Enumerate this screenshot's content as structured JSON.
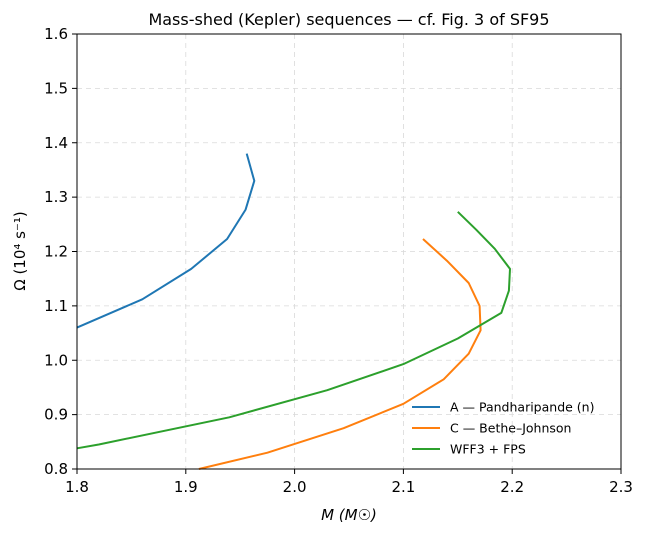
{
  "chart_data": {
    "type": "line",
    "title": "Mass-shed (Kepler) sequences — cf. Fig. 3 of SF95",
    "xlabel": "M (M☉)",
    "ylabel": "Ω (10⁴ s⁻¹)",
    "xlim": [
      1.8,
      2.3
    ],
    "ylim": [
      0.8,
      1.6
    ],
    "xticks": [
      "1.8",
      "1.9",
      "2.0",
      "2.1",
      "2.2",
      "2.3"
    ],
    "yticks": [
      "0.8",
      "0.9",
      "1.0",
      "1.1",
      "1.2",
      "1.3",
      "1.4",
      "1.5",
      "1.6"
    ],
    "grid": true,
    "legend_position": "lower-right",
    "series": [
      {
        "name": "A — Pandharipande (n)",
        "color": "#1f77b4",
        "x": [
          1.8,
          1.86,
          1.905,
          1.938,
          1.955,
          1.963,
          1.956
        ],
        "y": [
          1.06,
          1.112,
          1.168,
          1.223,
          1.277,
          1.33,
          1.38
        ]
      },
      {
        "name": "C — Bethe–Johnson",
        "color": "#ff7f0e",
        "x": [
          1.912,
          1.975,
          2.045,
          2.1,
          2.137,
          2.16,
          2.171,
          2.17,
          2.16,
          2.14,
          2.118
        ],
        "y": [
          0.8,
          0.83,
          0.875,
          0.92,
          0.965,
          1.012,
          1.055,
          1.1,
          1.142,
          1.183,
          1.223
        ]
      },
      {
        "name": "WFF3 + FPS",
        "color": "#2ca02c",
        "x": [
          1.8,
          1.82,
          1.94,
          2.03,
          2.1,
          2.15,
          2.19,
          2.197,
          2.198,
          2.184,
          2.167,
          2.15
        ],
        "y": [
          0.838,
          0.845,
          0.895,
          0.945,
          0.993,
          1.04,
          1.087,
          1.128,
          1.168,
          1.205,
          1.24,
          1.273
        ]
      }
    ]
  }
}
